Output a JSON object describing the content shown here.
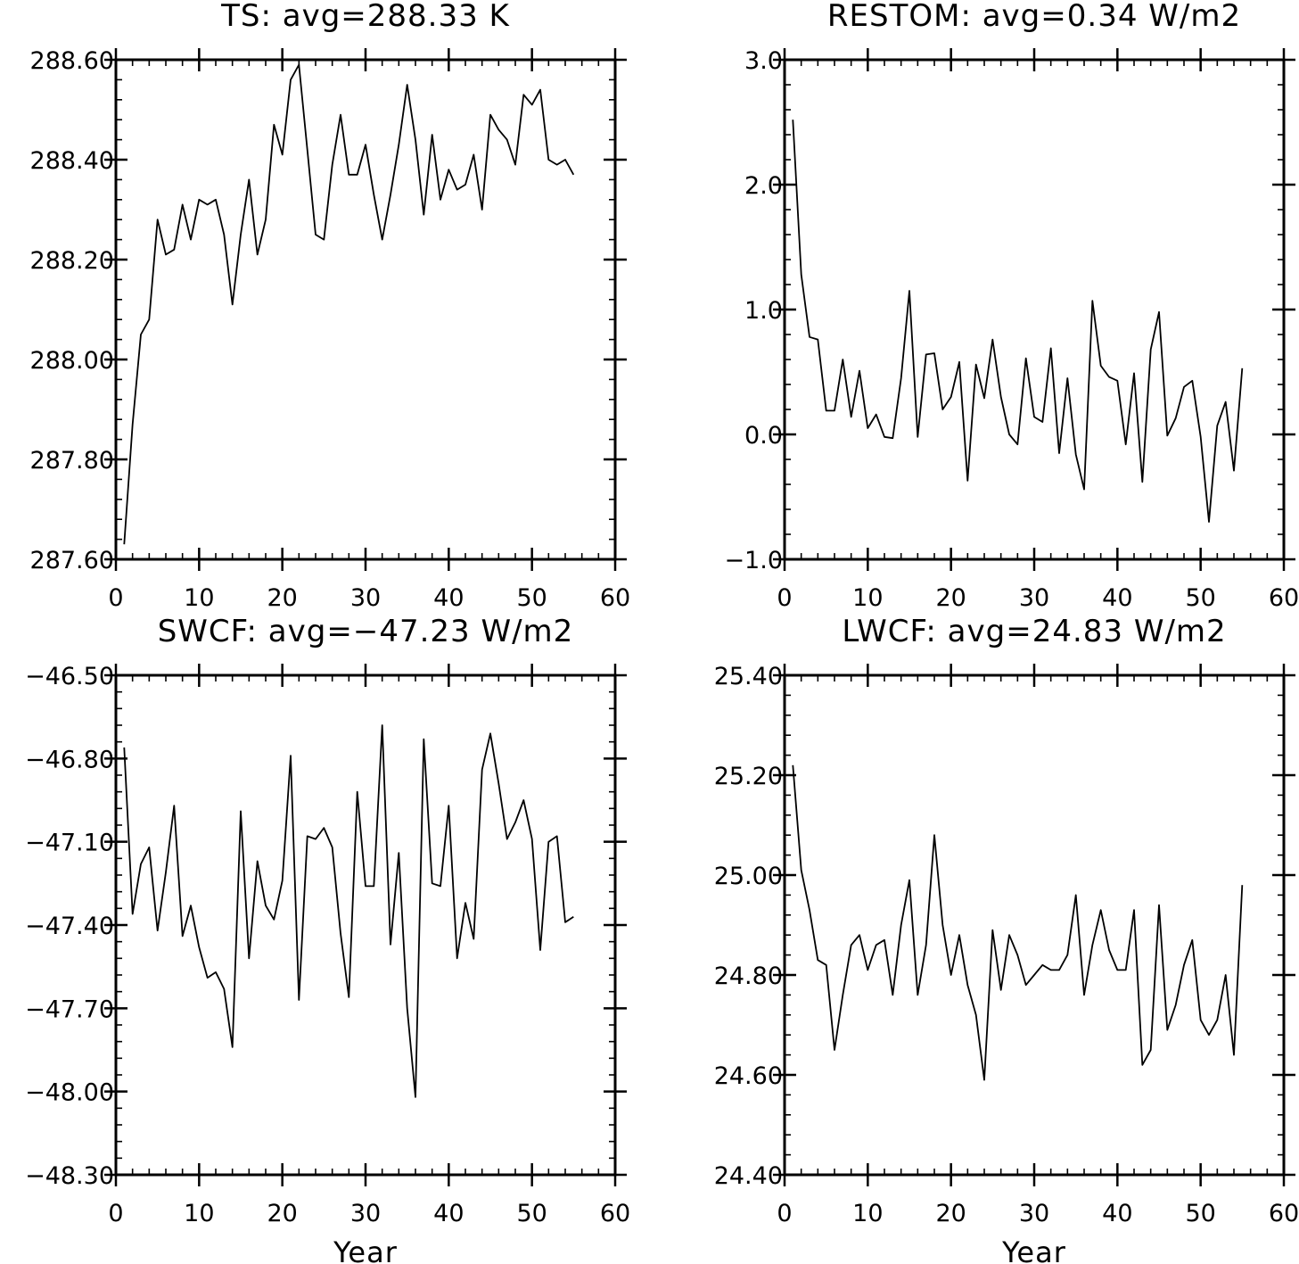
{
  "chart_data": [
    {
      "type": "line",
      "title": "TS: avg=288.33 K",
      "xlabel": "",
      "ylabel": "",
      "xlim": [
        0,
        60
      ],
      "ylim": [
        287.6,
        288.6
      ],
      "xticks": [
        0,
        10,
        20,
        30,
        40,
        50,
        60
      ],
      "xtick_labels": [
        "0",
        "10",
        "20",
        "30",
        "40",
        "50",
        "60"
      ],
      "yticks": [
        287.6,
        287.8,
        288.0,
        288.2,
        288.4,
        288.6
      ],
      "ytick_labels": [
        "287.60",
        "287.80",
        "288.00",
        "288.20",
        "288.40",
        "288.60"
      ],
      "x_minor_step": 2,
      "y_minor_step": 0.04,
      "grid": false,
      "x": [
        1,
        2,
        3,
        4,
        5,
        6,
        7,
        8,
        9,
        10,
        11,
        12,
        13,
        14,
        15,
        16,
        17,
        18,
        19,
        20,
        21,
        22,
        23,
        24,
        25,
        26,
        27,
        28,
        29,
        30,
        31,
        32,
        33,
        34,
        35,
        36,
        37,
        38,
        39,
        40,
        41,
        42,
        43,
        44,
        45,
        46,
        47,
        48,
        49,
        50,
        51,
        52,
        53,
        54,
        55
      ],
      "y": [
        287.63,
        287.87,
        288.05,
        288.08,
        288.28,
        288.21,
        288.22,
        288.31,
        288.24,
        288.32,
        288.31,
        288.32,
        288.25,
        288.11,
        288.25,
        288.36,
        288.21,
        288.28,
        288.47,
        288.41,
        288.56,
        288.59,
        288.42,
        288.25,
        288.24,
        288.39,
        288.49,
        288.37,
        288.37,
        288.43,
        288.33,
        288.24,
        288.33,
        288.43,
        288.55,
        288.44,
        288.29,
        288.45,
        288.32,
        288.38,
        288.34,
        288.35,
        288.41,
        288.3,
        288.49,
        288.46,
        288.44,
        288.39,
        288.53,
        288.51,
        288.54,
        288.4,
        288.39,
        288.4,
        288.37
      ]
    },
    {
      "type": "line",
      "title": "RESTOM: avg=0.34 W/m2",
      "xlabel": "",
      "ylabel": "",
      "xlim": [
        0,
        60
      ],
      "ylim": [
        -1.0,
        3.0
      ],
      "xticks": [
        0,
        10,
        20,
        30,
        40,
        50,
        60
      ],
      "xtick_labels": [
        "0",
        "10",
        "20",
        "30",
        "40",
        "50",
        "60"
      ],
      "yticks": [
        -1.0,
        0.0,
        1.0,
        2.0,
        3.0
      ],
      "ytick_labels": [
        "−1.0",
        "0.0",
        "1.0",
        "2.0",
        "3.0"
      ],
      "x_minor_step": 2,
      "y_minor_step": 0.2,
      "grid": false,
      "x": [
        1,
        2,
        3,
        4,
        5,
        6,
        7,
        8,
        9,
        10,
        11,
        12,
        13,
        14,
        15,
        16,
        17,
        18,
        19,
        20,
        21,
        22,
        23,
        24,
        25,
        26,
        27,
        28,
        29,
        30,
        31,
        32,
        33,
        34,
        35,
        36,
        37,
        38,
        39,
        40,
        41,
        42,
        43,
        44,
        45,
        46,
        47,
        48,
        49,
        50,
        51,
        52,
        53,
        54,
        55
      ],
      "y": [
        2.52,
        1.28,
        0.78,
        0.76,
        0.19,
        0.19,
        0.6,
        0.14,
        0.51,
        0.05,
        0.16,
        -0.02,
        -0.03,
        0.45,
        1.15,
        -0.02,
        0.64,
        0.65,
        0.2,
        0.3,
        0.58,
        -0.37,
        0.56,
        0.29,
        0.76,
        0.3,
        0.0,
        -0.08,
        0.61,
        0.14,
        0.1,
        0.69,
        -0.15,
        0.45,
        -0.16,
        -0.44,
        1.07,
        0.55,
        0.46,
        0.43,
        -0.08,
        0.49,
        -0.38,
        0.68,
        0.98,
        -0.01,
        0.13,
        0.38,
        0.43,
        -0.02,
        -0.7,
        0.07,
        0.26,
        -0.29,
        0.53
      ]
    },
    {
      "type": "line",
      "title": "SWCF: avg=−47.23 W/m2",
      "xlabel": "Year",
      "ylabel": "",
      "xlim": [
        0,
        60
      ],
      "ylim": [
        -48.3,
        -46.5
      ],
      "xticks": [
        0,
        10,
        20,
        30,
        40,
        50,
        60
      ],
      "xtick_labels": [
        "0",
        "10",
        "20",
        "30",
        "40",
        "50",
        "60"
      ],
      "yticks": [
        -48.3,
        -48.0,
        -47.7,
        -47.4,
        -47.1,
        -46.8,
        -46.5
      ],
      "ytick_labels": [
        "−48.30",
        "−48.00",
        "−47.70",
        "−47.40",
        "−47.10",
        "−46.80",
        "−46.50"
      ],
      "x_minor_step": 2,
      "y_minor_step": 0.06,
      "grid": false,
      "x": [
        1,
        2,
        3,
        4,
        5,
        6,
        7,
        8,
        9,
        10,
        11,
        12,
        13,
        14,
        15,
        16,
        17,
        18,
        19,
        20,
        21,
        22,
        23,
        24,
        25,
        26,
        27,
        28,
        29,
        30,
        31,
        32,
        33,
        34,
        35,
        36,
        37,
        38,
        39,
        40,
        41,
        42,
        43,
        44,
        45,
        46,
        47,
        48,
        49,
        50,
        51,
        52,
        53,
        54,
        55
      ],
      "y": [
        -46.76,
        -47.36,
        -47.18,
        -47.12,
        -47.42,
        -47.21,
        -46.97,
        -47.44,
        -47.33,
        -47.48,
        -47.59,
        -47.57,
        -47.63,
        -47.84,
        -46.99,
        -47.52,
        -47.17,
        -47.33,
        -47.38,
        -47.24,
        -46.79,
        -47.67,
        -47.08,
        -47.09,
        -47.05,
        -47.12,
        -47.43,
        -47.66,
        -46.92,
        -47.26,
        -47.26,
        -46.68,
        -47.47,
        -47.14,
        -47.7,
        -48.02,
        -46.73,
        -47.25,
        -47.26,
        -46.97,
        -47.52,
        -47.32,
        -47.45,
        -46.84,
        -46.71,
        -46.89,
        -47.09,
        -47.03,
        -46.95,
        -47.09,
        -47.49,
        -47.1,
        -47.08,
        -47.39,
        -47.37
      ]
    },
    {
      "type": "line",
      "title": "LWCF: avg=24.83 W/m2",
      "xlabel": "Year",
      "ylabel": "",
      "xlim": [
        0,
        60
      ],
      "ylim": [
        24.4,
        25.4
      ],
      "xticks": [
        0,
        10,
        20,
        30,
        40,
        50,
        60
      ],
      "xtick_labels": [
        "0",
        "10",
        "20",
        "30",
        "40",
        "50",
        "60"
      ],
      "yticks": [
        24.4,
        24.6,
        24.8,
        25.0,
        25.2,
        25.4
      ],
      "ytick_labels": [
        "24.40",
        "24.60",
        "24.80",
        "25.00",
        "25.20",
        "25.40"
      ],
      "x_minor_step": 2,
      "y_minor_step": 0.04,
      "grid": false,
      "x": [
        1,
        2,
        3,
        4,
        5,
        6,
        7,
        8,
        9,
        10,
        11,
        12,
        13,
        14,
        15,
        16,
        17,
        18,
        19,
        20,
        21,
        22,
        23,
        24,
        25,
        26,
        27,
        28,
        29,
        30,
        31,
        32,
        33,
        34,
        35,
        36,
        37,
        38,
        39,
        40,
        41,
        42,
        43,
        44,
        45,
        46,
        47,
        48,
        49,
        50,
        51,
        52,
        53,
        54,
        55
      ],
      "y": [
        25.22,
        25.01,
        24.93,
        24.83,
        24.82,
        24.65,
        24.76,
        24.86,
        24.88,
        24.81,
        24.86,
        24.87,
        24.76,
        24.9,
        24.99,
        24.76,
        24.86,
        25.08,
        24.9,
        24.8,
        24.88,
        24.78,
        24.72,
        24.59,
        24.89,
        24.77,
        24.88,
        24.84,
        24.78,
        24.8,
        24.82,
        24.81,
        24.81,
        24.84,
        24.96,
        24.76,
        24.86,
        24.93,
        24.85,
        24.81,
        24.81,
        24.93,
        24.62,
        24.65,
        24.94,
        24.69,
        24.74,
        24.82,
        24.87,
        24.71,
        24.68,
        24.71,
        24.8,
        24.64,
        24.98
      ]
    }
  ]
}
